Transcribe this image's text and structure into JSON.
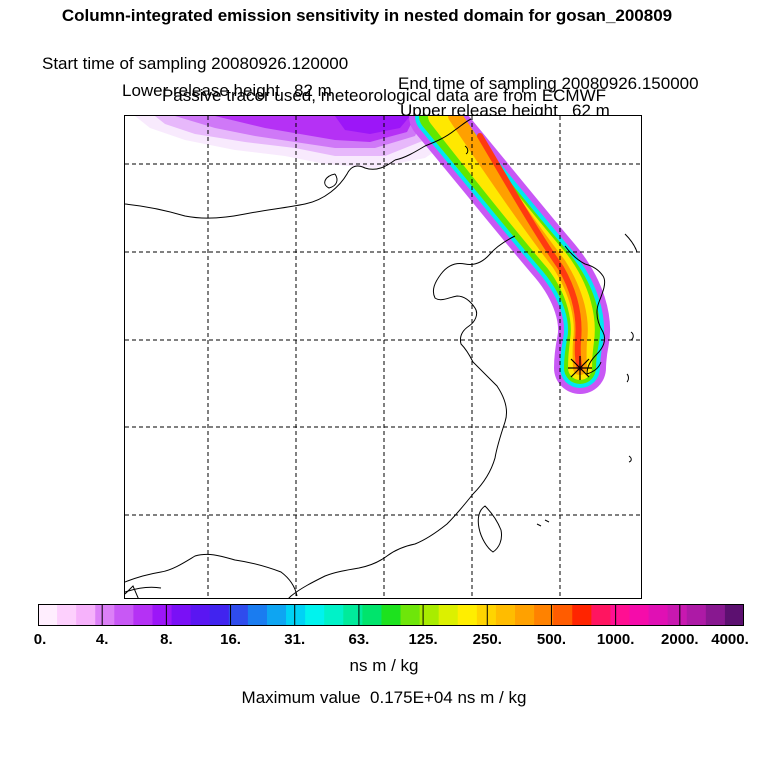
{
  "header": {
    "title": "Column-integrated emission sensitivity in nested domain for gosan_200809",
    "start_label": "Start time of sampling 20080926.120000",
    "end_label": "End time of sampling 20080926.150000",
    "lower_label": "Lower release height   82 m",
    "upper_label": "Upper release height   62 m",
    "tracer_note": "Passive tracer used, meteorological data are from ECMWF"
  },
  "colorbar": {
    "colors": [
      "#ffeefe",
      "#fdd0fd",
      "#f6b2fb",
      "#dc80f7",
      "#c858f5",
      "#b531f5",
      "#9c16f8",
      "#7a10f6",
      "#5a16f2",
      "#4124ef",
      "#2f4ced",
      "#1a7cf0",
      "#0ea5f2",
      "#00d2f5",
      "#00f3ee",
      "#00f2c8",
      "#00eb9b",
      "#00e46c",
      "#1de21e",
      "#6ee60a",
      "#a8ec00",
      "#dcf000",
      "#ffee00",
      "#ffd400",
      "#ffbc00",
      "#ffa100",
      "#ff8200",
      "#ff5c00",
      "#ff2400",
      "#ff1560",
      "#ff0f92",
      "#f50caa",
      "#e010b4",
      "#c818b0",
      "#ad1aa6",
      "#881890",
      "#5c1070"
    ],
    "tick_labels": [
      "0.",
      "4.",
      "8.",
      "16.",
      "31.",
      "63.",
      "125.",
      "250.",
      "500.",
      "1000.",
      "2000.",
      "4000."
    ],
    "unit": "ns m / kg"
  },
  "footer": {
    "max_value": "Maximum value  0.175E+04 ns m / kg"
  },
  "map": {
    "receptor": "gosan",
    "receptor_marker": "star-marker",
    "plume_colors": {
      "outer": "#b531f5",
      "cyan": "#00e8f0",
      "green": "#60e800",
      "yellow": "#ffe800",
      "orange": "#ffa000",
      "red": "#ff3a10"
    }
  }
}
